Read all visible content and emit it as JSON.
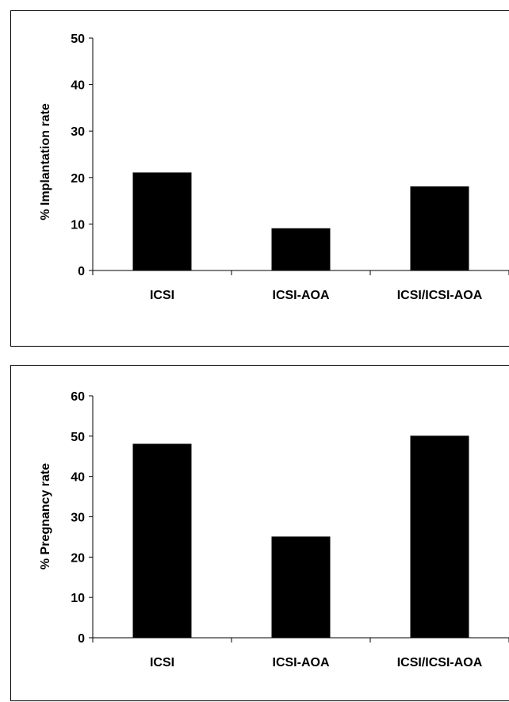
{
  "chart_data": [
    {
      "type": "bar",
      "categories": [
        "ICSI",
        "ICSI-AOA",
        "ICSI/ICSI-AOA"
      ],
      "values": [
        21,
        9,
        18
      ],
      "title": "",
      "xlabel": "",
      "ylabel": "% Implantation rate",
      "ylim": [
        0,
        50
      ],
      "yticks": [
        0,
        10,
        20,
        30,
        40,
        50
      ],
      "bar_color": "#000000",
      "grid": false
    },
    {
      "type": "bar",
      "categories": [
        "ICSI",
        "ICSI-AOA",
        "ICSI/ICSI-AOA"
      ],
      "values": [
        48,
        25,
        50
      ],
      "title": "",
      "xlabel": "",
      "ylabel": "% Pregnancy rate",
      "ylim": [
        0,
        60
      ],
      "yticks": [
        0,
        10,
        20,
        30,
        40,
        50,
        60
      ],
      "bar_color": "#000000",
      "grid": false
    }
  ]
}
